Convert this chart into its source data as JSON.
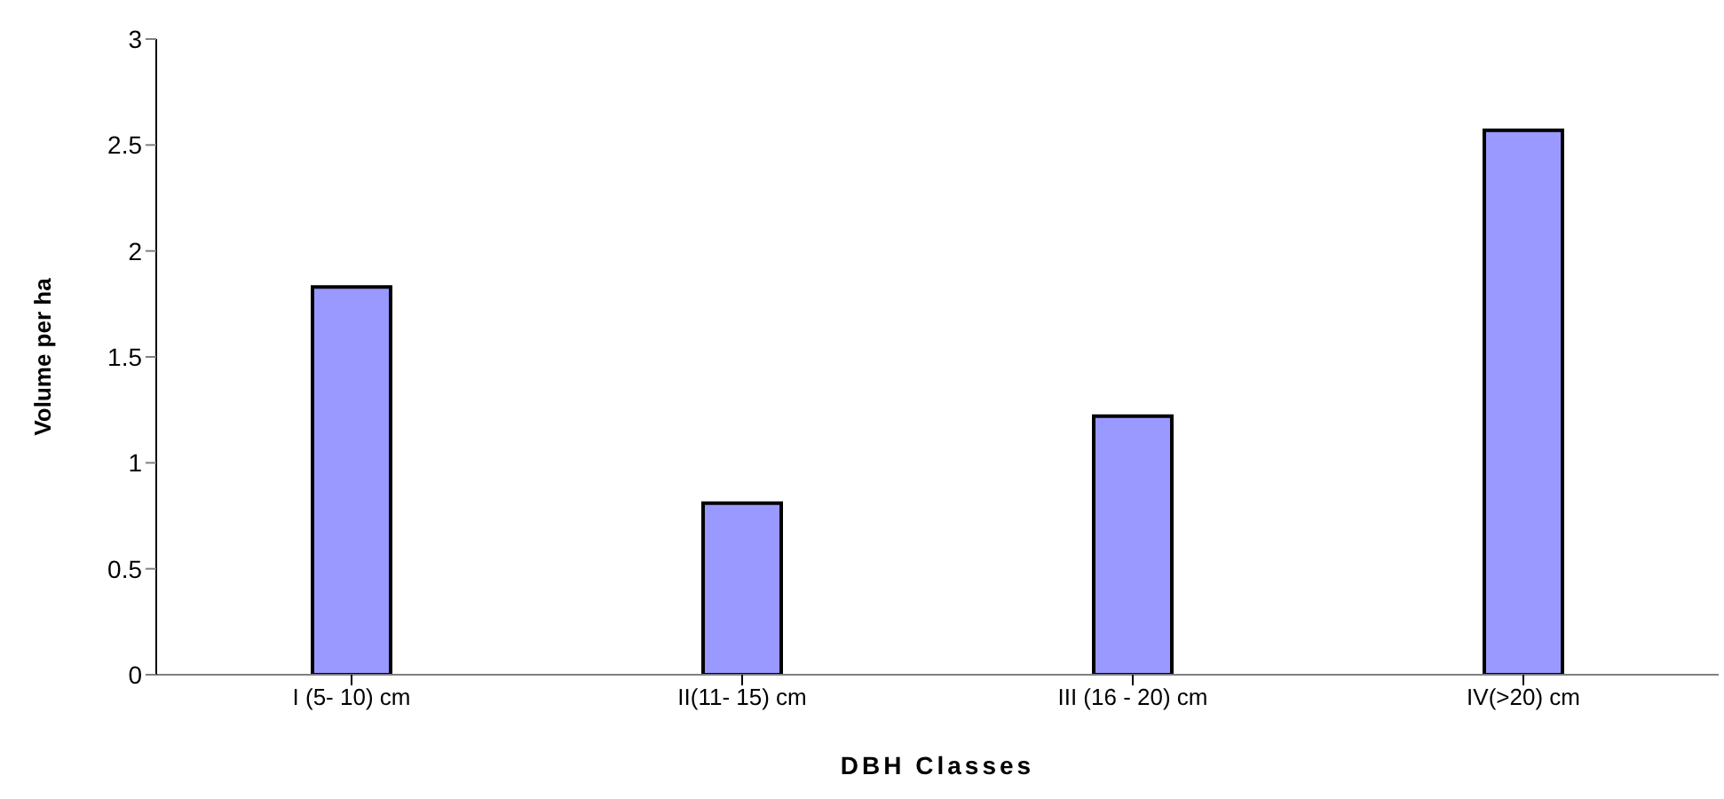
{
  "chart_data": {
    "type": "bar",
    "xlabel": "DBH Classes",
    "ylabel": "Volume per ha",
    "categories": [
      "I (5- 10) cm",
      "II(11- 15) cm",
      "III (16 - 20) cm",
      "IV(>20) cm"
    ],
    "values": [
      1.83,
      0.81,
      1.22,
      2.57
    ],
    "color": "#9999ff",
    "ylim": [
      0,
      3
    ],
    "yticks": [
      0,
      0.5,
      1,
      1.5,
      2,
      2.5,
      3
    ],
    "grid": false,
    "legend": false
  }
}
